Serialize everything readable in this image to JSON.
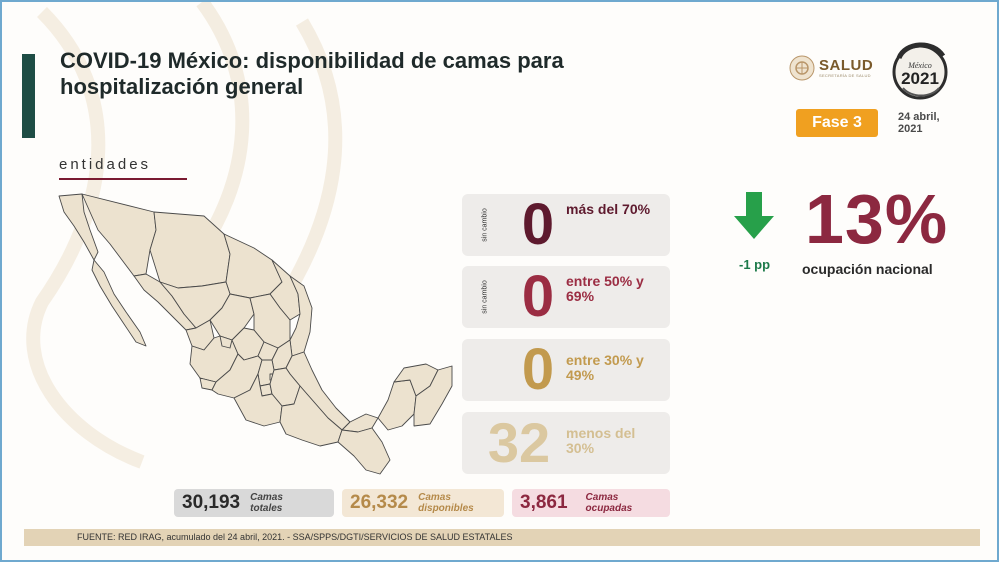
{
  "title": "COVID-19 México: disponibilidad de camas para hospitalización general",
  "section_label": "entidades",
  "logos": {
    "salud_text": "SALUD",
    "salud_subtext": "SECRETARÍA DE SALUD",
    "year_logo_text": "México 2021",
    "year_logo_icon": "serpent-emblem-icon"
  },
  "phase": {
    "label": "Fase 3",
    "color": "#f0a020"
  },
  "date": {
    "line1": "24 abril,",
    "line2": "2021"
  },
  "occupancy_cards": [
    {
      "side_label": "sin cambio",
      "value": "0",
      "label": "más del 70%",
      "color": "#5e1a2e"
    },
    {
      "side_label": "sin cambio",
      "value": "0",
      "label": "entre 50% y 69%",
      "color": "#9b2d43"
    },
    {
      "side_label": "",
      "value": "0",
      "label": "entre 30% y 49%",
      "color": "#c29a4e"
    },
    {
      "side_label": "",
      "value": "32",
      "label": "menos del 30%",
      "color": "#dbc8a0"
    }
  ],
  "national": {
    "trend_icon": "arrow-down-icon",
    "trend_color": "#27a04a",
    "trend_label": "-1 pp",
    "percent": "13%",
    "label": "ocupación nacional",
    "color": "#8c2840"
  },
  "bed_stats": [
    {
      "value": "30,193",
      "label": "Camas totales",
      "bg": "#d9d9d9",
      "color": "#2a2a2a"
    },
    {
      "value": "26,332",
      "label": "Camas disponibles",
      "bg": "#f3e7d5",
      "color": "#b58a4a"
    },
    {
      "value": "3,861",
      "label": "Camas ocupadas",
      "bg": "#f5dce1",
      "color": "#8c2840"
    }
  ],
  "footer": "FUENTE: RED IRAG, acumulado del 24 abril, 2021. -  SSA/SPPS/DGTI/SERVICIOS DE SALUD ESTATALES",
  "map_fill": "#ece2cf",
  "map_stroke": "#4a4a4a"
}
